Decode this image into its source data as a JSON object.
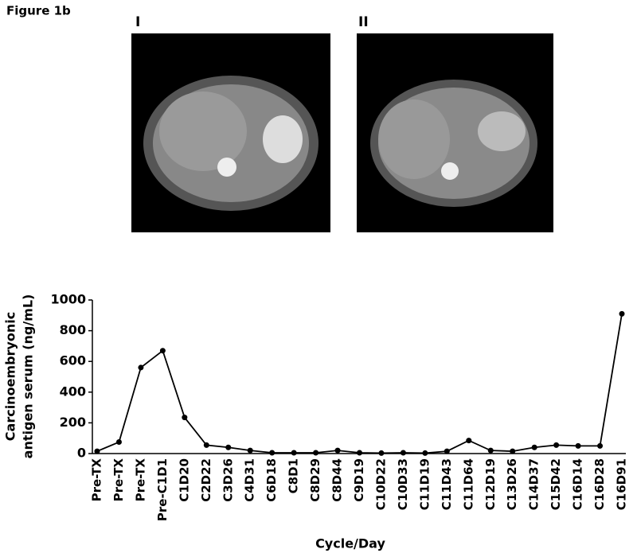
{
  "figure": {
    "title": "Figure 1b",
    "panels": [
      "I",
      "II"
    ]
  },
  "chart_data": {
    "type": "line",
    "y_label": [
      "Carcinoembryonic",
      "antigen serum (ng/mL)"
    ],
    "x_label": "Cycle/Day",
    "categories": [
      "Pre-TX",
      "Pre-TX",
      "Pre-TX",
      "Pre-C1D1",
      "C1D20",
      "C2D22",
      "C3D26",
      "C4D31",
      "C6D18",
      "C8D1",
      "C8D29",
      "C8D44",
      "C9D19",
      "C10D22",
      "C10D33",
      "C11D19",
      "C11D43",
      "C11D64",
      "C12D19",
      "C13D26",
      "C14D37",
      "C15D42",
      "C16D14",
      "C16D28",
      "C16D91"
    ],
    "values": [
      15,
      75,
      560,
      670,
      235,
      55,
      40,
      20,
      5,
      5,
      5,
      20,
      5,
      3,
      5,
      3,
      15,
      85,
      20,
      15,
      40,
      55,
      50,
      50,
      910
    ],
    "color": "#000000",
    "ylim": [
      0,
      1000
    ],
    "yticks": [
      0,
      200,
      400,
      600,
      800,
      1000
    ]
  }
}
